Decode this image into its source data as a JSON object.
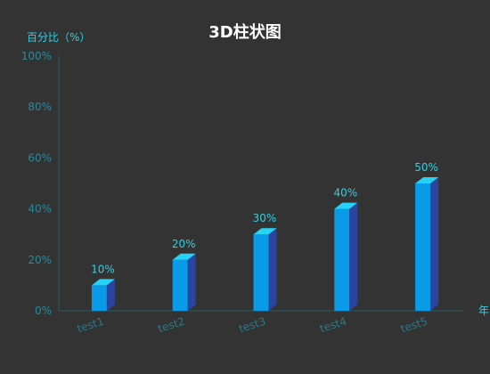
{
  "chart_data": {
    "type": "bar",
    "title": "3D柱状图",
    "ylabel": "百分比（%）",
    "xlabel": "年",
    "categories": [
      "test1",
      "test2",
      "test3",
      "test4",
      "test5"
    ],
    "values": [
      10,
      20,
      30,
      40,
      50
    ],
    "data_labels": [
      "10%",
      "20%",
      "30%",
      "40%",
      "50%"
    ],
    "ylim": [
      0,
      100
    ],
    "yticks": [
      0,
      20,
      40,
      60,
      80,
      100
    ],
    "ytick_labels": [
      "0%",
      "20%",
      "40%",
      "60%",
      "80%",
      "100%"
    ],
    "grid": false,
    "legend": "none",
    "colors": {
      "background": "#333333",
      "title": "#ffffff",
      "axis_name": "#2fd1e6",
      "axis_line": "#2a5a6a",
      "tick_label": "#2a8a9a",
      "x_tick_label": "#2a7a8a",
      "data_label": "#2fd1e6",
      "bar_front": "#0a9be8",
      "bar_side": "#2a45a0",
      "bar_top": "#27d3f5"
    }
  }
}
